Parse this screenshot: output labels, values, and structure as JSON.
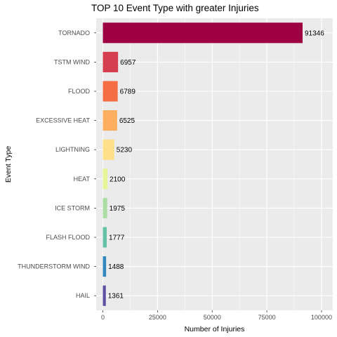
{
  "chart_data": {
    "type": "bar",
    "orientation": "horizontal",
    "title": "TOP 10 Event Type with greater Injuries",
    "xlabel": "Number of Injuries",
    "ylabel": "Event Type",
    "categories": [
      "TORNADO",
      "TSTM WIND",
      "FLOOD",
      "EXCESSIVE HEAT",
      "LIGHTNING",
      "HEAT",
      "ICE STORM",
      "FLASH FLOOD",
      "THUNDERSTORM WIND",
      "HAIL"
    ],
    "values": [
      91346,
      6957,
      6789,
      6525,
      5230,
      2100,
      1975,
      1777,
      1488,
      1361
    ],
    "colors": [
      "#9E0142",
      "#D53E4F",
      "#F46D43",
      "#FDAE61",
      "#FEE08B",
      "#E6F598",
      "#ABDDA4",
      "#66C2A5",
      "#3288BD",
      "#5E4FA2"
    ],
    "xlim": [
      0,
      100000
    ],
    "xticks": [
      0,
      25000,
      50000,
      75000,
      100000
    ],
    "panel_background": "#EBEBEB",
    "grid": true,
    "legend": "none"
  }
}
